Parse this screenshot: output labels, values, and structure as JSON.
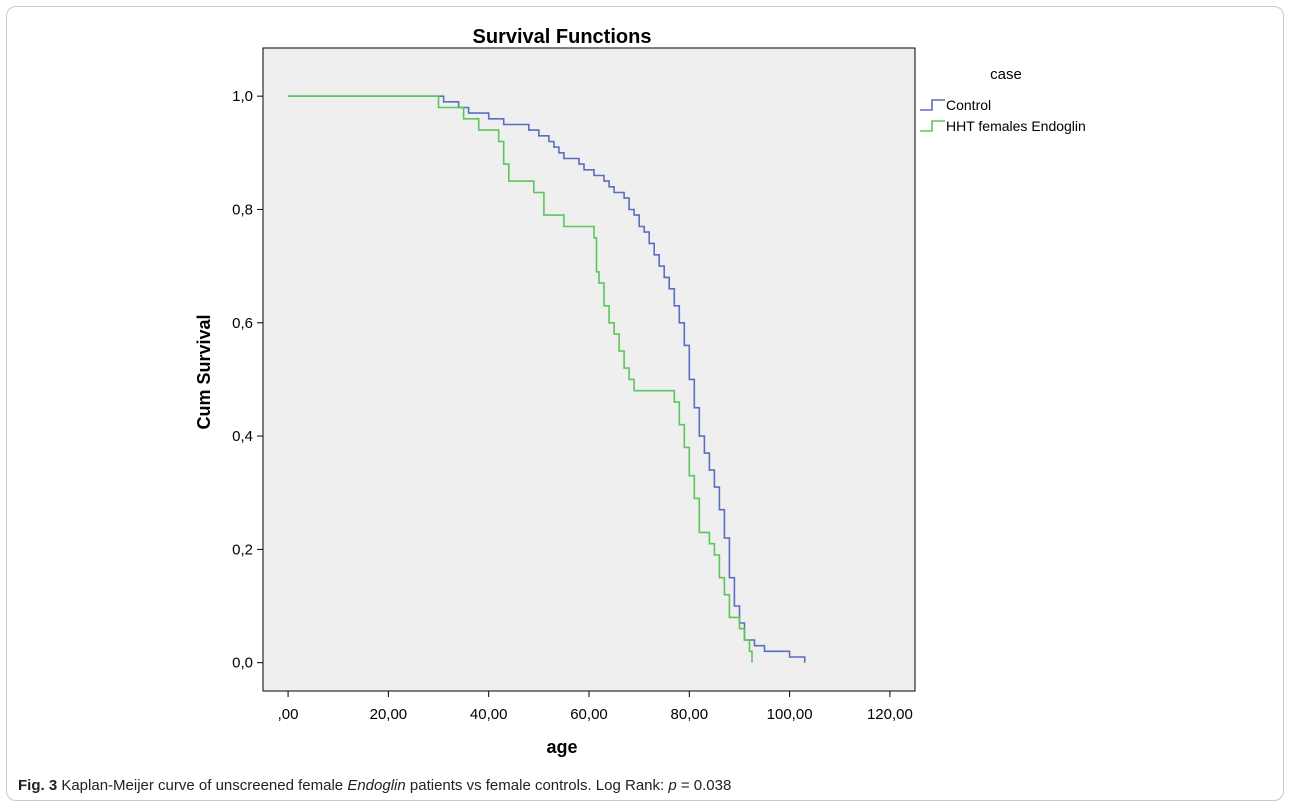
{
  "caption": {
    "label": "Fig. 3",
    "text_before": " Kaplan-Meijer curve of unscreened female ",
    "gene": "Endoglin",
    "text_after": " patients vs female controls. Log Rank: ",
    "p_symbol": "p",
    "p_value": " = 0.038"
  },
  "chart_data": {
    "type": "line",
    "step": true,
    "title": "Survival Functions",
    "xlabel": "age",
    "ylabel": "Cum Survival",
    "xlim": [
      -5,
      125
    ],
    "ylim": [
      -0.05,
      1.085
    ],
    "x_ticks": [
      0,
      20,
      40,
      60,
      80,
      100,
      120
    ],
    "x_tick_labels": [
      ",00",
      "20,00",
      "40,00",
      "60,00",
      "80,00",
      "100,00",
      "120,00"
    ],
    "y_ticks": [
      0,
      0.2,
      0.4,
      0.6,
      0.8,
      1.0
    ],
    "y_tick_labels": [
      "0,0",
      "0,2",
      "0,4",
      "0,6",
      "0,8",
      "1,0"
    ],
    "grid": false,
    "legend": {
      "title": "case",
      "position": "top-right"
    },
    "background": "#efefef",
    "series": [
      {
        "name": "Control",
        "color": "#5a6fbf",
        "points": [
          [
            0,
            1.0
          ],
          [
            31,
            1.0
          ],
          [
            31,
            0.99
          ],
          [
            34,
            0.99
          ],
          [
            34,
            0.98
          ],
          [
            36,
            0.98
          ],
          [
            36,
            0.97
          ],
          [
            40,
            0.97
          ],
          [
            40,
            0.96
          ],
          [
            43,
            0.96
          ],
          [
            43,
            0.95
          ],
          [
            48,
            0.95
          ],
          [
            48,
            0.94
          ],
          [
            50,
            0.94
          ],
          [
            50,
            0.93
          ],
          [
            52,
            0.93
          ],
          [
            52,
            0.92
          ],
          [
            53,
            0.92
          ],
          [
            53,
            0.91
          ],
          [
            54,
            0.91
          ],
          [
            54,
            0.9
          ],
          [
            55,
            0.9
          ],
          [
            55,
            0.89
          ],
          [
            58,
            0.89
          ],
          [
            58,
            0.88
          ],
          [
            59,
            0.88
          ],
          [
            59,
            0.87
          ],
          [
            61,
            0.87
          ],
          [
            61,
            0.86
          ],
          [
            63,
            0.86
          ],
          [
            63,
            0.85
          ],
          [
            64,
            0.85
          ],
          [
            64,
            0.84
          ],
          [
            65,
            0.84
          ],
          [
            65,
            0.83
          ],
          [
            67,
            0.83
          ],
          [
            67,
            0.82
          ],
          [
            68,
            0.82
          ],
          [
            68,
            0.8
          ],
          [
            69,
            0.8
          ],
          [
            69,
            0.79
          ],
          [
            70,
            0.79
          ],
          [
            70,
            0.77
          ],
          [
            71,
            0.77
          ],
          [
            71,
            0.76
          ],
          [
            72,
            0.76
          ],
          [
            72,
            0.74
          ],
          [
            73,
            0.74
          ],
          [
            73,
            0.72
          ],
          [
            74,
            0.72
          ],
          [
            74,
            0.7
          ],
          [
            75,
            0.7
          ],
          [
            75,
            0.68
          ],
          [
            76,
            0.68
          ],
          [
            76,
            0.66
          ],
          [
            77,
            0.66
          ],
          [
            77,
            0.63
          ],
          [
            78,
            0.63
          ],
          [
            78,
            0.6
          ],
          [
            79,
            0.6
          ],
          [
            79,
            0.56
          ],
          [
            80,
            0.56
          ],
          [
            80,
            0.5
          ],
          [
            81,
            0.5
          ],
          [
            81,
            0.45
          ],
          [
            82,
            0.45
          ],
          [
            82,
            0.4
          ],
          [
            83,
            0.4
          ],
          [
            83,
            0.37
          ],
          [
            84,
            0.37
          ],
          [
            84,
            0.34
          ],
          [
            85,
            0.34
          ],
          [
            85,
            0.31
          ],
          [
            86,
            0.31
          ],
          [
            86,
            0.27
          ],
          [
            87,
            0.27
          ],
          [
            87,
            0.22
          ],
          [
            88,
            0.22
          ],
          [
            88,
            0.15
          ],
          [
            89,
            0.15
          ],
          [
            89,
            0.1
          ],
          [
            90,
            0.1
          ],
          [
            90,
            0.07
          ],
          [
            91,
            0.07
          ],
          [
            91,
            0.04
          ],
          [
            93,
            0.04
          ],
          [
            93,
            0.03
          ],
          [
            95,
            0.03
          ],
          [
            95,
            0.02
          ],
          [
            100,
            0.02
          ],
          [
            100,
            0.01
          ],
          [
            103,
            0.01
          ],
          [
            103,
            0.0
          ]
        ]
      },
      {
        "name": "HHT females Endoglin",
        "color": "#5cc65c",
        "points": [
          [
            0,
            1.0
          ],
          [
            30,
            1.0
          ],
          [
            30,
            0.98
          ],
          [
            35,
            0.98
          ],
          [
            35,
            0.96
          ],
          [
            38,
            0.96
          ],
          [
            38,
            0.94
          ],
          [
            42,
            0.94
          ],
          [
            42,
            0.92
          ],
          [
            43,
            0.92
          ],
          [
            43,
            0.88
          ],
          [
            44,
            0.88
          ],
          [
            44,
            0.85
          ],
          [
            49,
            0.85
          ],
          [
            49,
            0.83
          ],
          [
            51,
            0.83
          ],
          [
            51,
            0.79
          ],
          [
            55,
            0.79
          ],
          [
            55,
            0.77
          ],
          [
            61,
            0.77
          ],
          [
            61,
            0.75
          ],
          [
            61.5,
            0.75
          ],
          [
            61.5,
            0.69
          ],
          [
            62,
            0.69
          ],
          [
            62,
            0.67
          ],
          [
            63,
            0.67
          ],
          [
            63,
            0.63
          ],
          [
            64,
            0.63
          ],
          [
            64,
            0.6
          ],
          [
            65,
            0.6
          ],
          [
            65,
            0.58
          ],
          [
            66,
            0.58
          ],
          [
            66,
            0.55
          ],
          [
            67,
            0.55
          ],
          [
            67,
            0.52
          ],
          [
            68,
            0.52
          ],
          [
            68,
            0.5
          ],
          [
            69,
            0.5
          ],
          [
            69,
            0.48
          ],
          [
            77,
            0.48
          ],
          [
            77,
            0.46
          ],
          [
            78,
            0.46
          ],
          [
            78,
            0.42
          ],
          [
            79,
            0.42
          ],
          [
            79,
            0.38
          ],
          [
            80,
            0.38
          ],
          [
            80,
            0.33
          ],
          [
            81,
            0.33
          ],
          [
            81,
            0.29
          ],
          [
            82,
            0.29
          ],
          [
            82,
            0.23
          ],
          [
            84,
            0.23
          ],
          [
            84,
            0.21
          ],
          [
            85,
            0.21
          ],
          [
            85,
            0.19
          ],
          [
            86,
            0.19
          ],
          [
            86,
            0.15
          ],
          [
            87,
            0.15
          ],
          [
            87,
            0.12
          ],
          [
            88,
            0.12
          ],
          [
            88,
            0.08
          ],
          [
            90,
            0.08
          ],
          [
            90,
            0.06
          ],
          [
            91,
            0.06
          ],
          [
            91,
            0.04
          ],
          [
            92,
            0.04
          ],
          [
            92,
            0.02
          ],
          [
            92.5,
            0.02
          ],
          [
            92.5,
            0.0
          ]
        ]
      }
    ]
  }
}
